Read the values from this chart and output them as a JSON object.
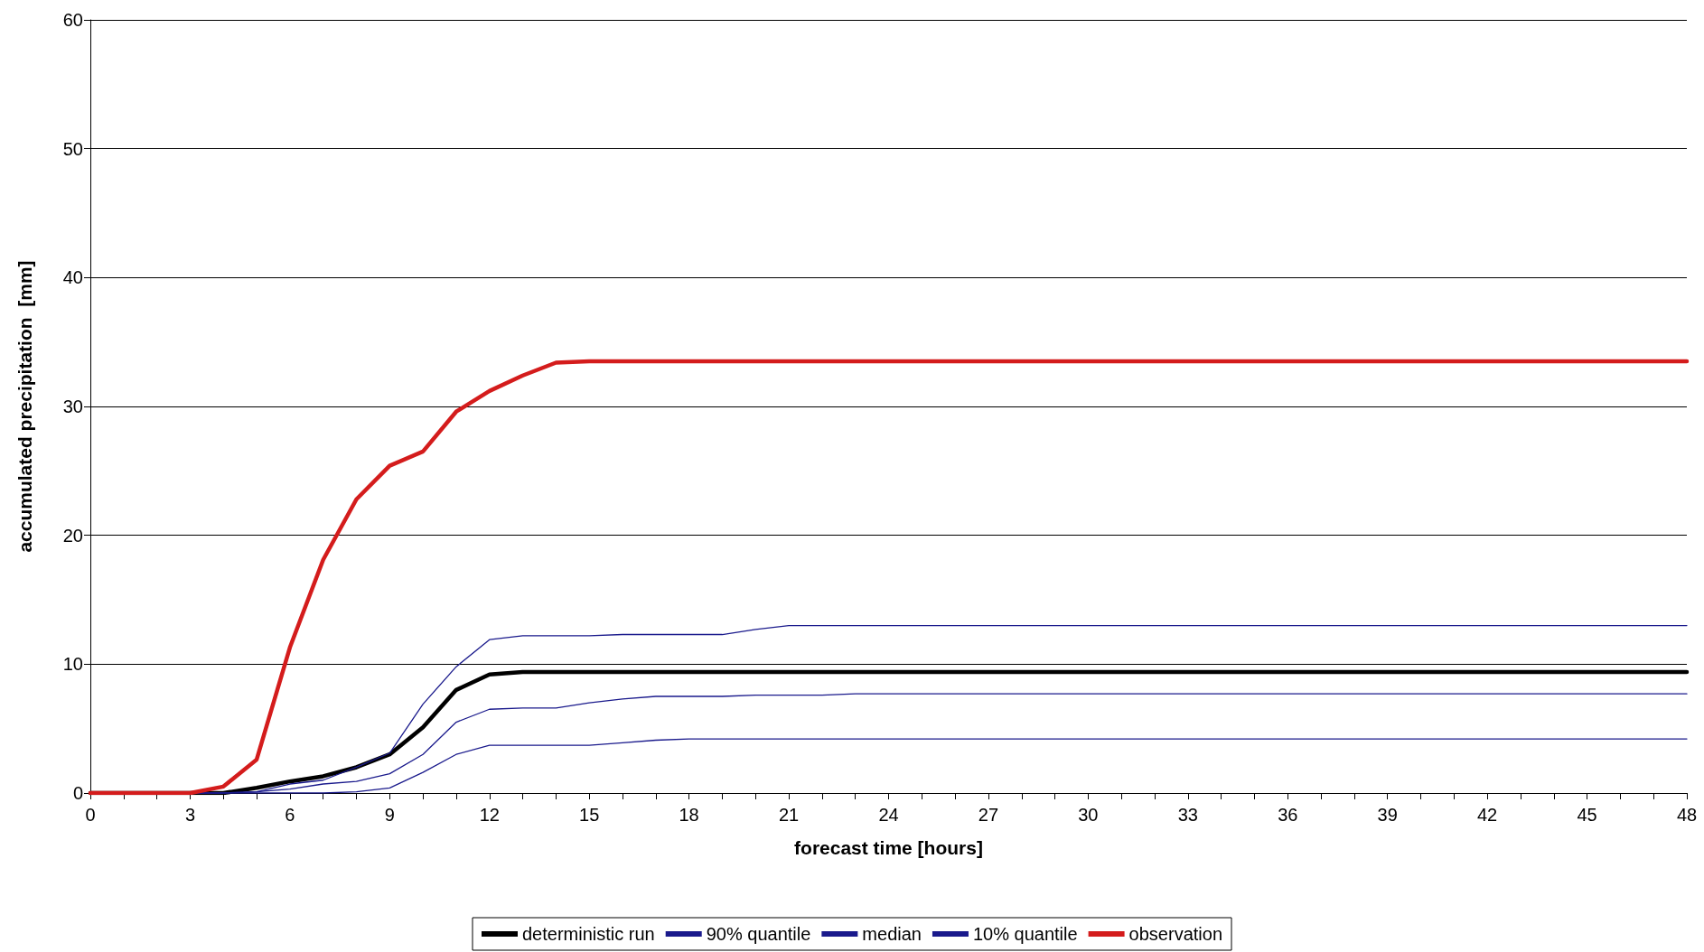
{
  "chart_data": {
    "type": "line",
    "xlabel": "forecast time [hours]",
    "ylabel": "accumulated precipitation  [mm]",
    "x": [
      0,
      1,
      2,
      3,
      4,
      5,
      6,
      7,
      8,
      9,
      10,
      11,
      12,
      13,
      14,
      15,
      16,
      17,
      18,
      19,
      20,
      21,
      22,
      23,
      24,
      25,
      26,
      27,
      28,
      29,
      30,
      31,
      32,
      33,
      34,
      35,
      36,
      37,
      38,
      39,
      40,
      41,
      42,
      43,
      44,
      45,
      46,
      47,
      48
    ],
    "xlim": [
      0,
      48
    ],
    "xticks": [
      0,
      3,
      6,
      9,
      12,
      15,
      18,
      21,
      24,
      27,
      30,
      33,
      36,
      39,
      42,
      45,
      48
    ],
    "ylim": [
      0,
      60
    ],
    "yticks": [
      0,
      10,
      20,
      30,
      40,
      50,
      60
    ],
    "grid": "y",
    "legend": "bottom",
    "marker": "none",
    "line_style": "solid",
    "series": [
      {
        "name": "deterministic run",
        "color": "#000000",
        "values": [
          0,
          0,
          0,
          0,
          0,
          0.4,
          0.9,
          1.3,
          2.0,
          3.0,
          5.1,
          8.0,
          9.2,
          9.4,
          9.4,
          9.4,
          9.4,
          9.4,
          9.4,
          9.4,
          9.4,
          9.4,
          9.4,
          9.4,
          9.4,
          9.4,
          9.4,
          9.4,
          9.4,
          9.4,
          9.4,
          9.4,
          9.4,
          9.4,
          9.4,
          9.4,
          9.4,
          9.4,
          9.4,
          9.4,
          9.4,
          9.4,
          9.4,
          9.4,
          9.4,
          9.4,
          9.4,
          9.4,
          9.4
        ]
      },
      {
        "name": "90% quantile",
        "color": "#1a1a8c",
        "values": [
          null,
          null,
          0,
          0,
          0,
          0.1,
          0.7,
          1.0,
          2.0,
          3.1,
          6.9,
          9.8,
          11.9,
          12.2,
          12.2,
          12.2,
          12.3,
          12.3,
          12.3,
          12.3,
          12.7,
          13.0,
          13.0,
          13.0,
          13.0,
          13.0,
          13.0,
          13.0,
          13.0,
          13.0,
          13.0,
          13.0,
          13.0,
          13.0,
          13.0,
          13.0,
          13.0,
          13.0,
          13.0,
          13.0,
          13.0,
          13.0,
          13.0,
          13.0,
          13.0,
          13.0,
          13.0,
          13.0,
          13.0
        ]
      },
      {
        "name": "median",
        "color": "#1a1a8c",
        "values": [
          null,
          null,
          0,
          0,
          0,
          0.1,
          0.3,
          0.7,
          0.9,
          1.5,
          3.0,
          5.5,
          6.5,
          6.6,
          6.6,
          7.0,
          7.3,
          7.5,
          7.5,
          7.5,
          7.6,
          7.6,
          7.6,
          7.7,
          7.7,
          7.7,
          7.7,
          7.7,
          7.7,
          7.7,
          7.7,
          7.7,
          7.7,
          7.7,
          7.7,
          7.7,
          7.7,
          7.7,
          7.7,
          7.7,
          7.7,
          7.7,
          7.7,
          7.7,
          7.7,
          7.7,
          7.7,
          7.7,
          7.7
        ]
      },
      {
        "name": "10% quantile",
        "color": "#1a1a8c",
        "values": [
          null,
          null,
          0,
          0,
          0,
          0,
          0,
          0,
          0.1,
          0.4,
          1.6,
          3.0,
          3.7,
          3.7,
          3.7,
          3.7,
          3.9,
          4.1,
          4.2,
          4.2,
          4.2,
          4.2,
          4.2,
          4.2,
          4.2,
          4.2,
          4.2,
          4.2,
          4.2,
          4.2,
          4.2,
          4.2,
          4.2,
          4.2,
          4.2,
          4.2,
          4.2,
          4.2,
          4.2,
          4.2,
          4.2,
          4.2,
          4.2,
          4.2,
          4.2,
          4.2,
          4.2,
          4.2,
          4.2
        ]
      },
      {
        "name": "observation",
        "color": "#d41c1c",
        "values": [
          0,
          0,
          0,
          0,
          0.5,
          2.6,
          11.3,
          18.1,
          22.8,
          25.4,
          26.5,
          29.6,
          31.2,
          32.4,
          33.4,
          33.5,
          33.5,
          33.5,
          33.5,
          33.5,
          33.5,
          33.5,
          33.5,
          33.5,
          33.5,
          33.5,
          33.5,
          33.5,
          33.5,
          33.5,
          33.5,
          33.5,
          33.5,
          33.5,
          33.5,
          33.5,
          33.5,
          33.5,
          33.5,
          33.5,
          33.5,
          33.5,
          33.5,
          33.5,
          33.5,
          33.5,
          33.5,
          33.5,
          33.5
        ]
      }
    ]
  }
}
